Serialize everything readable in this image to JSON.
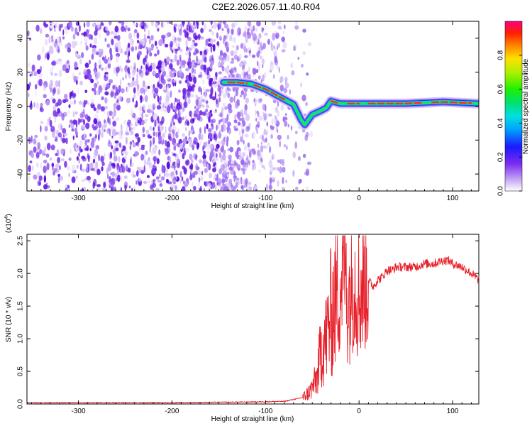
{
  "title": "C2E2.2026.057.11.40.R04",
  "colorbar": {
    "label": "Normalized spectral amplitude",
    "ticks": [
      "0.0",
      "0.2",
      "0.4",
      "0.6",
      "0.8"
    ]
  },
  "chart_data": [
    {
      "type": "heatmap",
      "xlabel": "Height of straight line (km)",
      "ylabel": "Frequency (Hz)",
      "xlim": [
        -355,
        128
      ],
      "ylim": [
        -50,
        50
      ],
      "xticks": [
        -300,
        -200,
        -100,
        0,
        100
      ],
      "yticks": [
        -40,
        -20,
        0,
        20,
        40
      ],
      "xtick_labels": [
        "-300",
        "-200",
        "-100",
        "0",
        "100"
      ],
      "ytick_labels": [
        "-40",
        "-20",
        "0",
        "20",
        "40"
      ],
      "zlim": [
        0,
        1
      ],
      "noise_region_x": [
        -355,
        -80
      ],
      "ridge": {
        "x": [
          -145,
          -130,
          -115,
          -100,
          -90,
          -80,
          -70,
          -62,
          -58,
          -50,
          -42,
          -35,
          -30,
          -20,
          0,
          50,
          90,
          128
        ],
        "y": [
          14,
          14,
          13,
          10,
          7,
          4,
          1,
          -8,
          -11,
          -5,
          -3,
          -1,
          3,
          1.5,
          1.5,
          1.5,
          2.5,
          1.5
        ]
      }
    },
    {
      "type": "line",
      "xlabel": "Height of straight line (km)",
      "ylabel": "SNR (10 * v/v)",
      "y_multiplier": "(x10",
      "y_multiplier_exp": "4",
      "xlim": [
        -355,
        128
      ],
      "ylim": [
        0,
        2.6
      ],
      "xticks": [
        -300,
        -200,
        -100,
        0,
        100
      ],
      "yticks": [
        0.0,
        0.5,
        1.0,
        1.5,
        2.0,
        2.5
      ],
      "xtick_labels": [
        "-300",
        "-200",
        "-100",
        "0",
        "100"
      ],
      "ytick_labels": [
        "0.0",
        "0.5",
        "1.0",
        "1.5",
        "2.0",
        "2.5"
      ],
      "color": "#e8202a",
      "x": [
        -355,
        -300,
        -200,
        -120,
        -80,
        -60,
        -52,
        -45,
        -40,
        -35,
        -30,
        -25,
        -20,
        -15,
        -12,
        -8,
        -5,
        0,
        5,
        10,
        15,
        20,
        25,
        30,
        35,
        40,
        50,
        60,
        70,
        80,
        90,
        95,
        100,
        110,
        120,
        128
      ],
      "y": [
        0.02,
        0.02,
        0.02,
        0.03,
        0.04,
        0.1,
        0.2,
        0.4,
        0.9,
        1.0,
        1.4,
        1.6,
        1.8,
        2.2,
        1.6,
        1.8,
        1.9,
        1.7,
        1.85,
        1.9,
        1.8,
        1.9,
        1.95,
        2.05,
        2.05,
        2.1,
        2.1,
        2.1,
        2.15,
        2.15,
        2.2,
        2.2,
        2.15,
        2.1,
        2.0,
        1.9
      ]
    }
  ]
}
